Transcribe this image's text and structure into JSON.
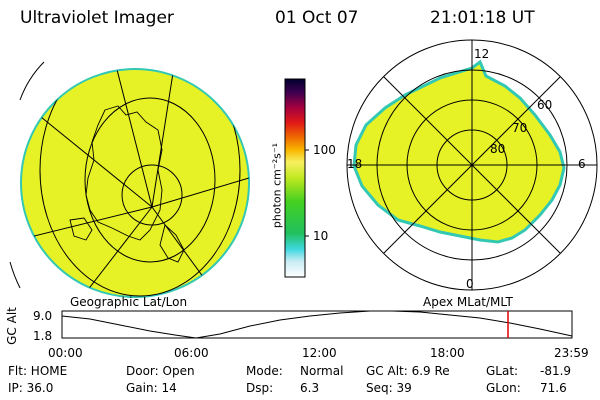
{
  "header": {
    "instrument": "Ultraviolet Imager",
    "date": "01 Oct 07",
    "time": "21:01:18 UT"
  },
  "colorbar": {
    "unit_label": "photon cm⁻²s⁻¹",
    "ticks": [
      "100",
      "10"
    ]
  },
  "polar_plot": {
    "mlt_labels": {
      "top": "12",
      "left": "18",
      "right": "6",
      "bottom": "0"
    },
    "lat_labels": [
      "60",
      "70",
      "80"
    ]
  },
  "panel_labels": {
    "left": "Geographic Lat/Lon",
    "right": "Apex MLat/MLT"
  },
  "alt_plot": {
    "ylabel": "GC Alt",
    "yticks": [
      "9.0",
      "1.8"
    ],
    "xticks": [
      "00:00",
      "06:00",
      "12:00",
      "18:00",
      "23:59"
    ],
    "marker_time": "21:01",
    "marker_color": "#e00000"
  },
  "info": {
    "row1": {
      "flt": "Flt: HOME",
      "door": "Door: Open",
      "mode_label": "Mode:",
      "mode_value": "Normal",
      "gcalt": "GC Alt: 6.9 Re",
      "glat_label": "GLat:",
      "glat_value": "-81.9"
    },
    "row2": {
      "ip": "IP: 36.0",
      "gain": "Gain: 14",
      "dsp_label": "Dsp:",
      "dsp_value": "6.3",
      "seq": "Seq: 39",
      "glon_label": "GLon:",
      "glon_value": "71.6"
    }
  },
  "colors": {
    "fill": "#e6f226",
    "edge": "#33c8b4",
    "line": "#000000",
    "marker": "#e00000"
  }
}
